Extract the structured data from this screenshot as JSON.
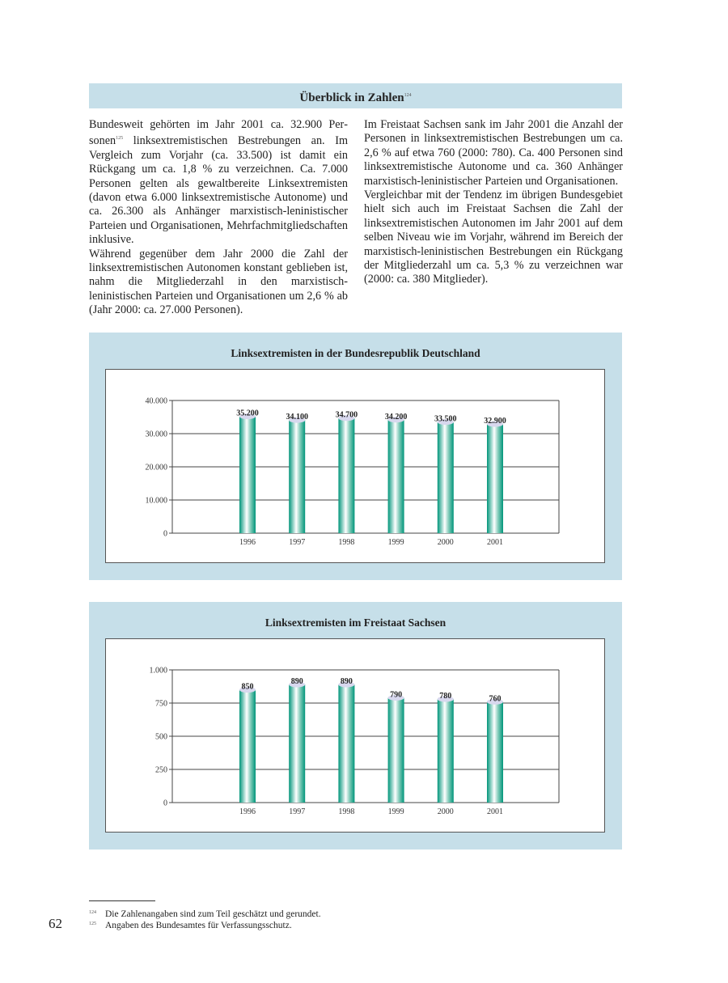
{
  "header": {
    "title": "Überblick in Zahlen",
    "footnote_ref": "124"
  },
  "left_column": {
    "p1_before": "Bundesweit gehörten im Jahr 2001 ca. 32.900 Per­sonen",
    "p1_ref": "125",
    "p1_after": " linksextremistischen Bestrebungen an. Im Vergleich zum Vorjahr (ca. 33.500) ist damit ein Rückgang um ca. 1,8 % zu verzeichnen. Ca. 7.000 Personen gelten als gewaltbereite Linksext­remisten (davon etwa 6.000 linksextremistische Autonome) und ca. 26.300 als Anhänger marxis­tisch-leninistischer Parteien und Organisationen, Mehrfachmitgliedschaften inklusive.",
    "p2": "Während gegenüber dem Jahr 2000 die Zahl der linksextremistischen Autonomen konstant geblie­ben ist, nahm die Mitgliederzahl in den marxis­tisch-leninistischen Parteien und Organisationen um 2,6 % ab (Jahr 2000: ca. 27.000 Personen)."
  },
  "right_column": {
    "p1": "Im Freistaat Sachsen sank im Jahr 2001 die An­zahl der Personen in linksextremistischen Bestre­bungen um ca. 2,6 % auf etwa 760 (2000: 780). Ca. 400 Personen sind linksextremistische Auto­nome und ca. 360 Anhänger marxistisch-leninisti­scher Parteien und Organisationen.",
    "p2": "Vergleichbar mit der Tendenz im übrigen Bundes­gebiet hielt sich auch im Freistaat Sachsen die Zahl der linksextremistischen Autonomen im Jahr 2001 auf dem selben Niveau wie im Vorjahr, während im Bereich der marxistisch-leninisti­schen Bestrebungen ein Rückgang der Mitglieder­zahl um ca. 5,3 % zu verzeichnen war (2000: ca. 380 Mitglieder)."
  },
  "chart_data": [
    {
      "type": "bar",
      "title": "Linksextremisten in der Bundesrepublik Deutschland",
      "categories": [
        "1996",
        "1997",
        "1998",
        "1999",
        "2000",
        "2001"
      ],
      "values": [
        35200,
        34100,
        34700,
        34200,
        33500,
        32900
      ],
      "value_labels": [
        "35.200",
        "34.100",
        "34.700",
        "34.200",
        "33.500",
        "32.900"
      ],
      "yticks": [
        0,
        10000,
        20000,
        30000,
        40000
      ],
      "ytick_labels": [
        "0",
        "10.000",
        "20.000",
        "30.000",
        "40.000"
      ],
      "ylim": [
        0,
        40000
      ],
      "grid": true,
      "bar_color": "#00957a"
    },
    {
      "type": "bar",
      "title": "Linksextremisten im Freistaat Sachsen",
      "categories": [
        "1996",
        "1997",
        "1998",
        "1999",
        "2000",
        "2001"
      ],
      "values": [
        850,
        890,
        890,
        790,
        780,
        760
      ],
      "value_labels": [
        "850",
        "890",
        "890",
        "790",
        "780",
        "760"
      ],
      "yticks": [
        0,
        250,
        500,
        750,
        1000
      ],
      "ytick_labels": [
        "0",
        "250",
        "500",
        "750",
        "1.000"
      ],
      "ylim": [
        0,
        1000
      ],
      "grid": true,
      "bar_color": "#00957a"
    }
  ],
  "footnotes": [
    {
      "num": "124",
      "text": "Die Zahlenangaben sind zum Teil geschätzt und gerundet."
    },
    {
      "num": "125",
      "text": "Angaben des Bundesamtes für Verfassungsschutz."
    }
  ],
  "page_number": "62"
}
